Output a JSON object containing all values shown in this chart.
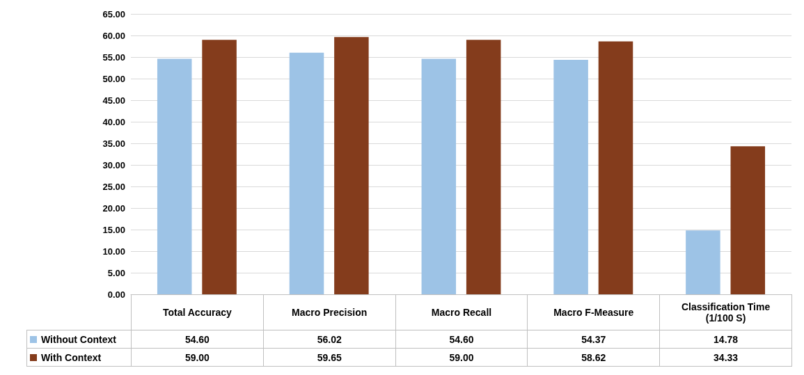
{
  "chart_data": {
    "type": "bar",
    "categories": [
      "Total Accuracy",
      "Macro Precision",
      "Macro Recall",
      "Macro F-Measure",
      "Classification Time (1/100 S)"
    ],
    "series": [
      {
        "name": "Without Context",
        "color": "#9dc3e6",
        "values": [
          54.6,
          56.02,
          54.6,
          54.37,
          14.78
        ],
        "value_labels": [
          "54.60",
          "56.02",
          "54.60",
          "54.37",
          "14.78"
        ]
      },
      {
        "name": "With Context",
        "color": "#843c1c",
        "values": [
          59.0,
          59.65,
          59.0,
          58.62,
          34.33
        ],
        "value_labels": [
          "59.00",
          "59.65",
          "59.00",
          "58.62",
          "34.33"
        ]
      }
    ],
    "ylim": [
      0,
      65
    ],
    "yticks": [
      {
        "value": 0,
        "label": "0.00"
      },
      {
        "value": 5,
        "label": "5.00"
      },
      {
        "value": 10,
        "label": "10.00"
      },
      {
        "value": 15,
        "label": "15.00"
      },
      {
        "value": 20,
        "label": "20.00"
      },
      {
        "value": 25,
        "label": "25.00"
      },
      {
        "value": 30,
        "label": "30.00"
      },
      {
        "value": 35,
        "label": "35.00"
      },
      {
        "value": 40,
        "label": "40.00"
      },
      {
        "value": 45,
        "label": "45.00"
      },
      {
        "value": 50,
        "label": "50.00"
      },
      {
        "value": 55,
        "label": "55.00"
      },
      {
        "value": 60,
        "label": "60.00"
      },
      {
        "value": 65,
        "label": "65.00"
      }
    ],
    "grid": "y",
    "legend": "bottom"
  }
}
